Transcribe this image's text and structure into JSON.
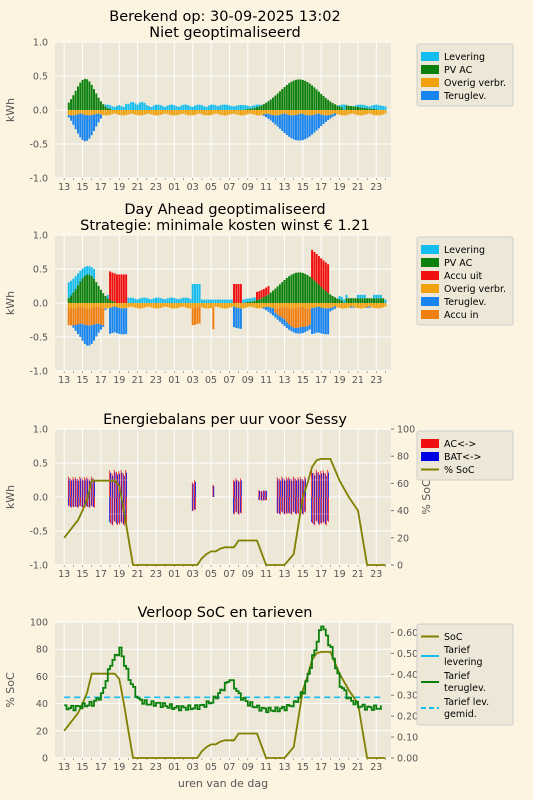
{
  "chart_data": [
    {
      "type": "bar",
      "title": "Berekend op: 30-09-2025 13:02",
      "subtitle": "Niet geoptimaliseerd",
      "ylabel": "kWh",
      "xlabel": "",
      "ylim": [
        -1.0,
        1.0
      ],
      "yticks": [
        "1.0",
        "0.5",
        "0.0",
        "-0.5",
        "-1.0"
      ],
      "xticks": [
        "13",
        "15",
        "17",
        "19",
        "21",
        "23",
        "01",
        "03",
        "05",
        "07",
        "09",
        "11",
        "13",
        "15",
        "17",
        "19",
        "21",
        "23"
      ],
      "legend_position": "right",
      "grid": true,
      "colors": {
        "levering": "#13bdf0",
        "pv": "#0c800c",
        "overig": "#f0a10b",
        "terug": "#1784f0"
      },
      "legend": [
        "Levering",
        "PV AC",
        "Overig verbr.",
        "Teruglev."
      ],
      "series": [
        {
          "name": "PV AC",
          "interval_hours": 0.25,
          "start_hour": 13,
          "values": [
            0.05,
            0.08,
            0.12,
            0.18,
            0.25,
            0.3,
            0.38,
            0.42,
            0.45,
            0.44,
            0.42,
            0.38,
            0.35,
            0.3,
            0.25,
            0.2,
            0.18,
            0.15,
            0.12,
            0.1,
            0.08,
            0.06,
            0.05,
            0.04,
            0.03,
            0.02,
            0.01
          ]
        },
        {
          "name": "Teruglev.",
          "values": [
            -0.05,
            -0.1,
            -0.18,
            -0.25,
            -0.32,
            -0.36,
            -0.4,
            -0.44,
            -0.45,
            -0.42,
            -0.4,
            -0.36,
            -0.33,
            -0.28,
            -0.23,
            -0.18,
            -0.15,
            -0.12,
            -0.1,
            -0.08,
            -0.06,
            -0.04,
            -0.03,
            -0.02,
            -0.01
          ]
        },
        {
          "name": "Levering",
          "note_hours": "night",
          "typical": 0.05
        },
        {
          "name": "Overig verbr.",
          "typical": -0.05
        }
      ]
    },
    {
      "type": "bar",
      "title": "Day Ahead geoptimaliseerd",
      "subtitle": "Strategie: minimale kosten winst € 1.21",
      "ylabel": "kWh",
      "xlabel": "",
      "ylim": [
        -1.0,
        1.0
      ],
      "yticks": [
        "1.0",
        "0.5",
        "0.0",
        "-0.5",
        "-1.0"
      ],
      "xticks": [
        "13",
        "15",
        "17",
        "19",
        "21",
        "23",
        "01",
        "03",
        "05",
        "07",
        "09",
        "11",
        "13",
        "15",
        "17",
        "19",
        "21",
        "23"
      ],
      "legend_position": "right",
      "grid": true,
      "colors": {
        "levering": "#13bdf0",
        "pv": "#0c800c",
        "accu_uit": "#f01010",
        "overig": "#f0a10b",
        "terug": "#1784f0",
        "accu_in": "#f07f10"
      },
      "legend": [
        "Levering",
        "PV AC",
        "Accu uit",
        "Overig verbr.",
        "Teruglev.",
        "Accu in"
      ]
    },
    {
      "type": "bar",
      "title": "Energiebalans per uur voor Sessy",
      "ylabel": "kWh",
      "y2label": "% SoC",
      "xlabel": "",
      "ylim": [
        -1.0,
        1.0
      ],
      "y2lim": [
        0,
        100
      ],
      "yticks": [
        "1.0",
        "0.5",
        "0.0",
        "-0.5",
        "-1.0"
      ],
      "y2ticks": [
        "100",
        "80",
        "60",
        "40",
        "20",
        "0"
      ],
      "xticks": [
        "13",
        "15",
        "17",
        "19",
        "21",
        "23",
        "01",
        "03",
        "05",
        "07",
        "09",
        "11",
        "13",
        "15",
        "17",
        "19",
        "21",
        "23"
      ],
      "legend_position": "right",
      "grid": true,
      "colors": {
        "ac": "#f01010",
        "bat": "#0000e6",
        "soc": "#808000"
      },
      "legend": [
        "AC<->",
        "BAT<->",
        "% SoC"
      ],
      "soc": {
        "x": [
          13,
          14.5,
          15,
          15.5,
          16,
          17,
          18.5,
          19,
          19.5,
          20,
          20.5,
          21,
          22,
          23,
          24,
          25,
          26,
          27,
          27.5,
          28,
          28.5,
          29,
          29.5,
          30,
          30.5,
          31,
          31.5,
          32,
          32.5,
          33,
          33.5,
          34,
          35,
          35.5,
          36,
          37,
          38,
          39,
          39.5,
          40,
          40.5,
          41,
          41.5,
          42,
          43,
          44,
          45,
          46,
          47,
          48
        ],
        "y": [
          20,
          33,
          40,
          48,
          62,
          62,
          62,
          58,
          40,
          20,
          0,
          0,
          0,
          0,
          0,
          0,
          0,
          0,
          0,
          5,
          8,
          10,
          10,
          12,
          13,
          13,
          13,
          18,
          18,
          18,
          18,
          18,
          0,
          0,
          0,
          0,
          8,
          50,
          60,
          72,
          77,
          78,
          78,
          78,
          62,
          50,
          40,
          0,
          0,
          0
        ]
      }
    },
    {
      "type": "line",
      "title": "Verloop SoC en tarieven",
      "ylabel": "% SoC",
      "y2label": "euro/kWh",
      "xlabel": "uren van de dag",
      "ylim": [
        0,
        100
      ],
      "y2lim": [
        0,
        0.65
      ],
      "yticks": [
        "100",
        "80",
        "60",
        "40",
        "20",
        "0"
      ],
      "y2ticks": [
        "0.60",
        "0.50",
        "0.40",
        "0.30",
        "0.20",
        "0.10",
        "0.00"
      ],
      "xticks": [
        "13",
        "15",
        "17",
        "19",
        "21",
        "23",
        "01",
        "03",
        "05",
        "07",
        "09",
        "11",
        "13",
        "15",
        "17",
        "19",
        "21",
        "23"
      ],
      "legend_position": "right",
      "grid": true,
      "colors": {
        "soc": "#808000",
        "tarief_lev": "#13bdf0",
        "tarief_terug": "#0c800c",
        "tarief_gemid": "#13bdf0"
      },
      "legend": [
        "SoC",
        "Tarief\nlevering",
        "Tarief\nteruglev.",
        "Tarief lev.\ngemid."
      ],
      "tarief_levering_gemid": 0.29,
      "tarief_teruglev": {
        "x": [
          13,
          14,
          15,
          16,
          17,
          18,
          19,
          20,
          21,
          22,
          23,
          24,
          25,
          26,
          27,
          28,
          29,
          30,
          31,
          32,
          33,
          34,
          35,
          36,
          37,
          38,
          39,
          40,
          41,
          42,
          43,
          44,
          45,
          46,
          47,
          47.5
        ],
        "y": [
          0.24,
          0.24,
          0.25,
          0.26,
          0.3,
          0.45,
          0.52,
          0.38,
          0.28,
          0.26,
          0.26,
          0.25,
          0.24,
          0.24,
          0.24,
          0.25,
          0.27,
          0.32,
          0.38,
          0.3,
          0.26,
          0.24,
          0.23,
          0.23,
          0.24,
          0.26,
          0.32,
          0.48,
          0.64,
          0.52,
          0.35,
          0.28,
          0.25,
          0.24,
          0.24,
          0.24
        ]
      }
    }
  ]
}
